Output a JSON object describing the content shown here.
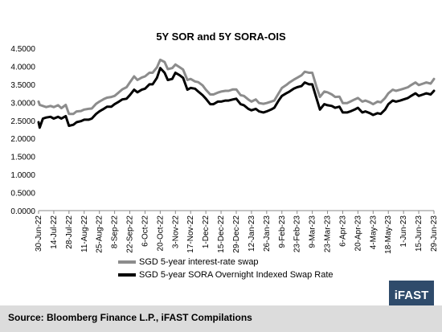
{
  "chart_data": {
    "type": "line",
    "title": "5Y SOR and 5Y SORA-OIS",
    "xlabel": "",
    "ylabel": "",
    "ylim": [
      0,
      4.5
    ],
    "yticks": [
      "0.0000",
      "0.5000",
      "1.0000",
      "1.5000",
      "2.0000",
      "2.5000",
      "3.0000",
      "3.5000",
      "4.0000",
      "4.5000"
    ],
    "x_start": "2022-06-30",
    "x_end": "2023-06-29",
    "xticks": [
      "30-Jun-22",
      "14-Jul-22",
      "28-Jul-22",
      "11-Aug-22",
      "25-Aug-22",
      "8-Sep-22",
      "22-Sep-22",
      "6-Oct-22",
      "20-Oct-22",
      "3-Nov-22",
      "17-Nov-22",
      "1-Dec-22",
      "15-Dec-22",
      "29-Dec-22",
      "12-Jan-23",
      "26-Jan-23",
      "9-Feb-23",
      "23-Feb-23",
      "9-Mar-23",
      "23-Mar-23",
      "6-Apr-23",
      "20-Apr-23",
      "4-May-23",
      "18-May-23",
      "1-Jun-23",
      "15-Jun-23",
      "29-Jun-23"
    ],
    "grid": false,
    "legend_position": "bottom",
    "series": [
      {
        "name": "SGD 5-year interest-rate swap",
        "color": "#8c8c8c",
        "points": [
          [
            "2022-06-30",
            3.02
          ],
          [
            "2022-07-01",
            2.93
          ],
          [
            "2022-07-04",
            2.9
          ],
          [
            "2022-07-07",
            2.87
          ],
          [
            "2022-07-11",
            2.9
          ],
          [
            "2022-07-14",
            2.87
          ],
          [
            "2022-07-18",
            2.92
          ],
          [
            "2022-07-21",
            2.84
          ],
          [
            "2022-07-25",
            2.93
          ],
          [
            "2022-07-28",
            2.68
          ],
          [
            "2022-08-01",
            2.68
          ],
          [
            "2022-08-04",
            2.75
          ],
          [
            "2022-08-08",
            2.76
          ],
          [
            "2022-08-11",
            2.8
          ],
          [
            "2022-08-15",
            2.82
          ],
          [
            "2022-08-18",
            2.83
          ],
          [
            "2022-08-22",
            2.96
          ],
          [
            "2022-08-25",
            3.02
          ],
          [
            "2022-08-29",
            3.09
          ],
          [
            "2022-09-01",
            3.13
          ],
          [
            "2022-09-05",
            3.15
          ],
          [
            "2022-09-08",
            3.18
          ],
          [
            "2022-09-12",
            3.28
          ],
          [
            "2022-09-15",
            3.36
          ],
          [
            "2022-09-19",
            3.42
          ],
          [
            "2022-09-22",
            3.55
          ],
          [
            "2022-09-26",
            3.72
          ],
          [
            "2022-09-29",
            3.62
          ],
          [
            "2022-10-03",
            3.69
          ],
          [
            "2022-10-06",
            3.72
          ],
          [
            "2022-10-10",
            3.82
          ],
          [
            "2022-10-13",
            3.82
          ],
          [
            "2022-10-17",
            3.97
          ],
          [
            "2022-10-20",
            4.18
          ],
          [
            "2022-10-24",
            4.12
          ],
          [
            "2022-10-27",
            3.92
          ],
          [
            "2022-10-31",
            3.95
          ],
          [
            "2022-11-03",
            4.05
          ],
          [
            "2022-11-07",
            3.97
          ],
          [
            "2022-11-10",
            3.91
          ],
          [
            "2022-11-14",
            3.62
          ],
          [
            "2022-11-17",
            3.65
          ],
          [
            "2022-11-21",
            3.58
          ],
          [
            "2022-11-24",
            3.56
          ],
          [
            "2022-11-28",
            3.47
          ],
          [
            "2022-12-01",
            3.35
          ],
          [
            "2022-12-05",
            3.22
          ],
          [
            "2022-12-08",
            3.22
          ],
          [
            "2022-12-12",
            3.27
          ],
          [
            "2022-12-15",
            3.3
          ],
          [
            "2022-12-19",
            3.32
          ],
          [
            "2022-12-22",
            3.32
          ],
          [
            "2022-12-26",
            3.36
          ],
          [
            "2022-12-29",
            3.36
          ],
          [
            "2023-01-02",
            3.2
          ],
          [
            "2023-01-05",
            3.18
          ],
          [
            "2023-01-09",
            3.08
          ],
          [
            "2023-01-12",
            3.02
          ],
          [
            "2023-01-16",
            3.08
          ],
          [
            "2023-01-19",
            2.98
          ],
          [
            "2023-01-23",
            2.96
          ],
          [
            "2023-01-26",
            2.98
          ],
          [
            "2023-01-30",
            3.02
          ],
          [
            "2023-02-02",
            3.05
          ],
          [
            "2023-02-06",
            3.25
          ],
          [
            "2023-02-09",
            3.4
          ],
          [
            "2023-02-13",
            3.48
          ],
          [
            "2023-02-16",
            3.55
          ],
          [
            "2023-02-20",
            3.63
          ],
          [
            "2023-02-23",
            3.68
          ],
          [
            "2023-02-27",
            3.75
          ],
          [
            "2023-03-02",
            3.85
          ],
          [
            "2023-03-06",
            3.82
          ],
          [
            "2023-03-09",
            3.82
          ],
          [
            "2023-03-13",
            3.42
          ],
          [
            "2023-03-16",
            3.15
          ],
          [
            "2023-03-20",
            3.3
          ],
          [
            "2023-03-23",
            3.28
          ],
          [
            "2023-03-27",
            3.22
          ],
          [
            "2023-03-30",
            3.15
          ],
          [
            "2023-04-03",
            3.16
          ],
          [
            "2023-04-06",
            2.98
          ],
          [
            "2023-04-10",
            2.98
          ],
          [
            "2023-04-13",
            3.02
          ],
          [
            "2023-04-17",
            3.08
          ],
          [
            "2023-04-20",
            3.12
          ],
          [
            "2023-04-24",
            3.02
          ],
          [
            "2023-04-27",
            3.05
          ],
          [
            "2023-05-01",
            3.0
          ],
          [
            "2023-05-04",
            2.95
          ],
          [
            "2023-05-08",
            3.02
          ],
          [
            "2023-05-11",
            3.0
          ],
          [
            "2023-05-15",
            3.12
          ],
          [
            "2023-05-18",
            3.25
          ],
          [
            "2023-05-22",
            3.35
          ],
          [
            "2023-05-25",
            3.32
          ],
          [
            "2023-05-29",
            3.35
          ],
          [
            "2023-06-01",
            3.38
          ],
          [
            "2023-06-05",
            3.42
          ],
          [
            "2023-06-08",
            3.48
          ],
          [
            "2023-06-12",
            3.55
          ],
          [
            "2023-06-15",
            3.48
          ],
          [
            "2023-06-19",
            3.52
          ],
          [
            "2023-06-22",
            3.55
          ],
          [
            "2023-06-26",
            3.52
          ],
          [
            "2023-06-29",
            3.65
          ]
        ]
      },
      {
        "name": "SGD 5-year SORA Overnight Indexed Swap Rate",
        "color": "#000000",
        "points": [
          [
            "2022-06-30",
            2.45
          ],
          [
            "2022-07-01",
            2.3
          ],
          [
            "2022-07-04",
            2.55
          ],
          [
            "2022-07-07",
            2.58
          ],
          [
            "2022-07-11",
            2.6
          ],
          [
            "2022-07-14",
            2.55
          ],
          [
            "2022-07-18",
            2.6
          ],
          [
            "2022-07-21",
            2.55
          ],
          [
            "2022-07-25",
            2.62
          ],
          [
            "2022-07-28",
            2.35
          ],
          [
            "2022-08-01",
            2.38
          ],
          [
            "2022-08-04",
            2.45
          ],
          [
            "2022-08-08",
            2.48
          ],
          [
            "2022-08-11",
            2.52
          ],
          [
            "2022-08-15",
            2.52
          ],
          [
            "2022-08-18",
            2.55
          ],
          [
            "2022-08-22",
            2.68
          ],
          [
            "2022-08-25",
            2.75
          ],
          [
            "2022-08-29",
            2.82
          ],
          [
            "2022-09-01",
            2.88
          ],
          [
            "2022-09-05",
            2.88
          ],
          [
            "2022-09-08",
            2.95
          ],
          [
            "2022-09-12",
            3.02
          ],
          [
            "2022-09-15",
            3.08
          ],
          [
            "2022-09-19",
            3.1
          ],
          [
            "2022-09-22",
            3.2
          ],
          [
            "2022-09-26",
            3.35
          ],
          [
            "2022-09-29",
            3.28
          ],
          [
            "2022-10-03",
            3.35
          ],
          [
            "2022-10-06",
            3.38
          ],
          [
            "2022-10-10",
            3.5
          ],
          [
            "2022-10-13",
            3.5
          ],
          [
            "2022-10-17",
            3.68
          ],
          [
            "2022-10-20",
            3.95
          ],
          [
            "2022-10-24",
            3.82
          ],
          [
            "2022-10-27",
            3.62
          ],
          [
            "2022-10-31",
            3.65
          ],
          [
            "2022-11-03",
            3.82
          ],
          [
            "2022-11-07",
            3.75
          ],
          [
            "2022-11-10",
            3.68
          ],
          [
            "2022-11-14",
            3.35
          ],
          [
            "2022-11-17",
            3.4
          ],
          [
            "2022-11-21",
            3.38
          ],
          [
            "2022-11-24",
            3.3
          ],
          [
            "2022-11-28",
            3.2
          ],
          [
            "2022-12-01",
            3.1
          ],
          [
            "2022-12-05",
            2.95
          ],
          [
            "2022-12-08",
            2.95
          ],
          [
            "2022-12-12",
            3.02
          ],
          [
            "2022-12-15",
            3.02
          ],
          [
            "2022-12-19",
            3.05
          ],
          [
            "2022-12-22",
            3.05
          ],
          [
            "2022-12-26",
            3.08
          ],
          [
            "2022-12-29",
            3.1
          ],
          [
            "2023-01-02",
            2.95
          ],
          [
            "2023-01-05",
            2.92
          ],
          [
            "2023-01-09",
            2.82
          ],
          [
            "2023-01-12",
            2.78
          ],
          [
            "2023-01-16",
            2.82
          ],
          [
            "2023-01-19",
            2.75
          ],
          [
            "2023-01-23",
            2.72
          ],
          [
            "2023-01-26",
            2.75
          ],
          [
            "2023-01-30",
            2.8
          ],
          [
            "2023-02-02",
            2.85
          ],
          [
            "2023-02-06",
            3.05
          ],
          [
            "2023-02-09",
            3.18
          ],
          [
            "2023-02-13",
            3.25
          ],
          [
            "2023-02-16",
            3.3
          ],
          [
            "2023-02-20",
            3.38
          ],
          [
            "2023-02-23",
            3.42
          ],
          [
            "2023-02-27",
            3.45
          ],
          [
            "2023-03-02",
            3.55
          ],
          [
            "2023-03-06",
            3.5
          ],
          [
            "2023-03-09",
            3.5
          ],
          [
            "2023-03-13",
            3.1
          ],
          [
            "2023-03-16",
            2.8
          ],
          [
            "2023-03-20",
            2.95
          ],
          [
            "2023-03-23",
            2.92
          ],
          [
            "2023-03-27",
            2.9
          ],
          [
            "2023-03-30",
            2.85
          ],
          [
            "2023-04-03",
            2.88
          ],
          [
            "2023-04-06",
            2.72
          ],
          [
            "2023-04-10",
            2.72
          ],
          [
            "2023-04-13",
            2.75
          ],
          [
            "2023-04-17",
            2.8
          ],
          [
            "2023-04-20",
            2.85
          ],
          [
            "2023-04-24",
            2.72
          ],
          [
            "2023-04-27",
            2.75
          ],
          [
            "2023-05-01",
            2.7
          ],
          [
            "2023-05-04",
            2.65
          ],
          [
            "2023-05-08",
            2.7
          ],
          [
            "2023-05-11",
            2.68
          ],
          [
            "2023-05-15",
            2.8
          ],
          [
            "2023-05-18",
            2.95
          ],
          [
            "2023-05-22",
            3.05
          ],
          [
            "2023-05-25",
            3.02
          ],
          [
            "2023-05-29",
            3.05
          ],
          [
            "2023-06-01",
            3.08
          ],
          [
            "2023-06-05",
            3.12
          ],
          [
            "2023-06-08",
            3.18
          ],
          [
            "2023-06-12",
            3.25
          ],
          [
            "2023-06-15",
            3.18
          ],
          [
            "2023-06-19",
            3.22
          ],
          [
            "2023-06-22",
            3.25
          ],
          [
            "2023-06-26",
            3.22
          ],
          [
            "2023-06-29",
            3.32
          ]
        ]
      }
    ]
  },
  "footer": {
    "source": "Source: Bloomberg Finance L.P., iFAST Compilations",
    "logo": "iFAST"
  },
  "colors": {
    "footer_bg": "#dcdcdc",
    "logo_bg": "#2f4b6b"
  }
}
